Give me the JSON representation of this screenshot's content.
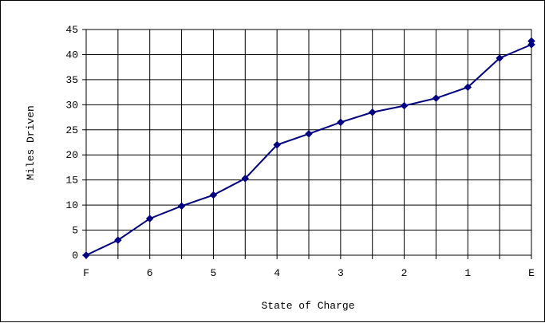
{
  "chart_data": {
    "type": "line",
    "title": "",
    "xlabel": "State of Charge",
    "ylabel": "Miles Driven",
    "x_tick_labels": [
      "F",
      "6",
      "5",
      "4",
      "3",
      "2",
      "1",
      "E"
    ],
    "ylim": [
      0,
      45
    ],
    "y_ticks": [
      0,
      5,
      10,
      15,
      20,
      25,
      30,
      35,
      40,
      45
    ],
    "grid": true,
    "legend": "none",
    "colors": {
      "series": "#000080",
      "grid": "#000000",
      "background": "#ffffff"
    },
    "series": [
      {
        "x": [
          0,
          0.5,
          1,
          1.5,
          2,
          2.5,
          3,
          3.5,
          4,
          4.5,
          5,
          5.5,
          6,
          6.5,
          7,
          7
        ],
        "y": [
          0,
          3,
          7.3,
          9.8,
          12,
          15.3,
          22,
          24.2,
          26.5,
          28.5,
          29.8,
          31.3,
          33.5,
          39.3,
          42,
          42.7
        ]
      }
    ]
  }
}
